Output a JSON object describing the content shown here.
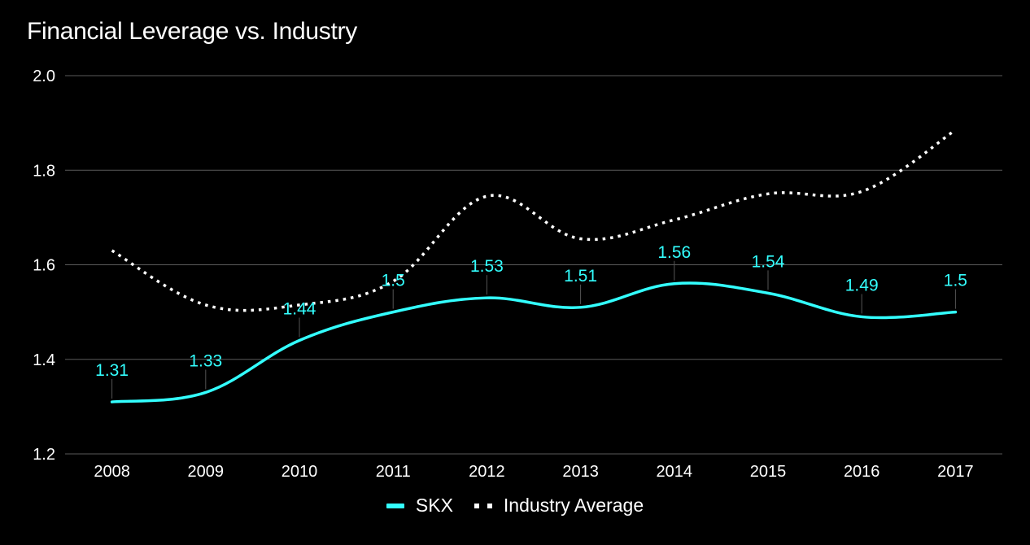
{
  "chart_data": {
    "type": "line",
    "title": "Financial Leverage vs. Industry",
    "categories": [
      "2008",
      "2009",
      "2010",
      "2011",
      "2012",
      "2013",
      "2014",
      "2015",
      "2016",
      "2017"
    ],
    "series": [
      {
        "name": "SKX",
        "values": [
          1.31,
          1.33,
          1.44,
          1.5,
          1.53,
          1.51,
          1.56,
          1.54,
          1.49,
          1.5
        ],
        "color": "#33ffff",
        "style": "solid",
        "data_labels": true
      },
      {
        "name": "Industry Average",
        "values": [
          1.63,
          1.515,
          1.515,
          1.565,
          1.745,
          1.655,
          1.695,
          1.75,
          1.755,
          1.885
        ],
        "color": "#ffffff",
        "style": "dotted",
        "data_labels": false
      }
    ],
    "ylim": [
      1.2,
      2.0
    ],
    "yticks": [
      "1.2",
      "1.4",
      "1.6",
      "1.8",
      "2.0"
    ],
    "xlabel": "",
    "ylabel": "",
    "legend_position": "bottom-center",
    "grid": true
  }
}
